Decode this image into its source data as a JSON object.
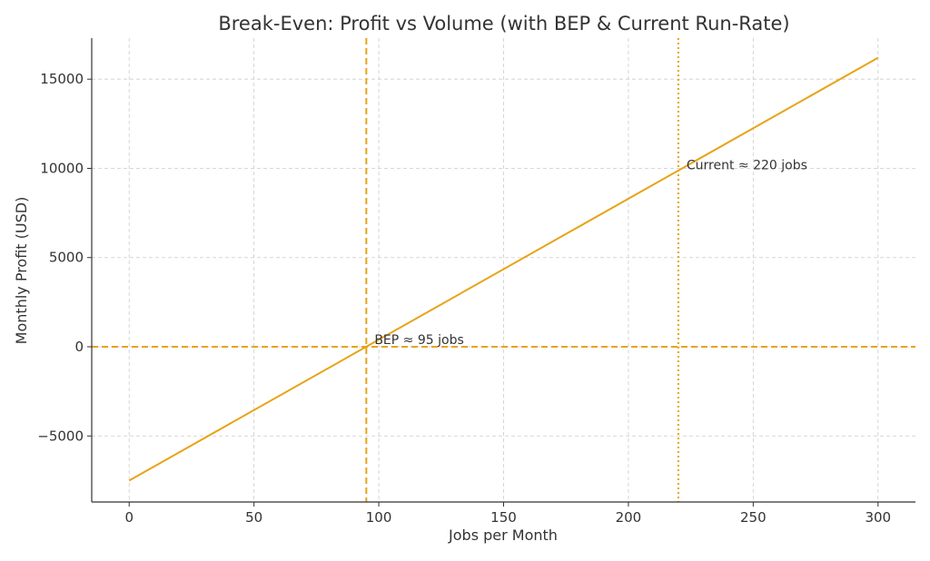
{
  "chart_data": {
    "type": "line",
    "title": "Break-Even: Profit vs Volume (with BEP & Current Run-Rate)",
    "xlabel": "Jobs per Month",
    "ylabel": "Monthly Profit (USD)",
    "xlim": [
      -15,
      315
    ],
    "ylim": [
      -8700,
      17300
    ],
    "xticks": [
      0,
      50,
      100,
      150,
      200,
      250,
      300
    ],
    "xtick_labels": [
      "0",
      "50",
      "100",
      "150",
      "200",
      "250",
      "300"
    ],
    "yticks": [
      -5000,
      0,
      5000,
      10000,
      15000
    ],
    "ytick_labels": [
      "−5000",
      "0",
      "5000",
      "10000",
      "15000"
    ],
    "grid": true,
    "series": [
      {
        "x": [
          0,
          300
        ],
        "y": [
          -7500,
          16200
        ],
        "color": "#E8A317"
      }
    ],
    "reference_lines": [
      {
        "orientation": "horizontal",
        "value": 0,
        "style": "dashed",
        "color": "#E8A317"
      },
      {
        "orientation": "vertical",
        "value": 95,
        "style": "dashed",
        "color": "#E8A317"
      },
      {
        "orientation": "vertical",
        "value": 220,
        "style": "dotted",
        "color": "#E8A317"
      }
    ],
    "annotations": [
      {
        "text": "BEP ≈ 95 jobs",
        "x": 95,
        "y": 0
      },
      {
        "text": "Current ≈ 220 jobs",
        "x": 220,
        "y": 9800
      }
    ]
  }
}
